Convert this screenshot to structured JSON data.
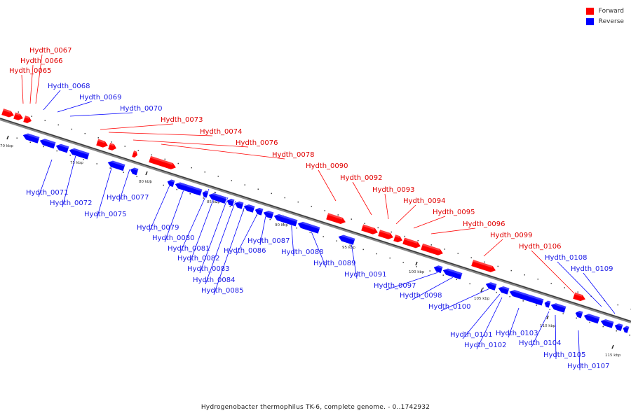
{
  "legend": {
    "forward_label": "Forward",
    "reverse_label": "Reverse",
    "forward_color": "#ff0000",
    "reverse_color": "#0000ff"
  },
  "caption": "Hydrogenobacter thermophilus TK-6, complete genome. - 0..1742932",
  "ticks": [
    "70 kbp",
    "75 kbp",
    "80 kbp",
    "85 kbp",
    "90 kbp",
    "95 kbp",
    "100 kbp",
    "105 kbp",
    "110 kbp",
    "115 kbp"
  ],
  "forward_genes": [
    "Hydth_0065",
    "Hydth_0066",
    "Hydth_0067",
    "Hydth_0073",
    "Hydth_0074",
    "Hydth_0076",
    "Hydth_0078",
    "Hydth_0090",
    "Hydth_0092",
    "Hydth_0093",
    "Hydth_0094",
    "Hydth_0095",
    "Hydth_0096",
    "Hydth_0099",
    "Hydth_0106"
  ],
  "reverse_genes": [
    "Hydth_0068",
    "Hydth_0069",
    "Hydth_0070",
    "Hydth_0071",
    "Hydth_0072",
    "Hydth_0075",
    "Hydth_0077",
    "Hydth_0079",
    "Hydth_0080",
    "Hydth_0081",
    "Hydth_0082",
    "Hydth_0083",
    "Hydth_0084",
    "Hydth_0085",
    "Hydth_0086",
    "Hydth_0087",
    "Hydth_0088",
    "Hydth_0089",
    "Hydth_0091",
    "Hydth_0097",
    "Hydth_0098",
    "Hydth_0100",
    "Hydth_0101",
    "Hydth_0102",
    "Hydth_0103",
    "Hydth_0104",
    "Hydth_0105",
    "Hydth_0107",
    "Hydth_0108",
    "Hydth_0109"
  ]
}
